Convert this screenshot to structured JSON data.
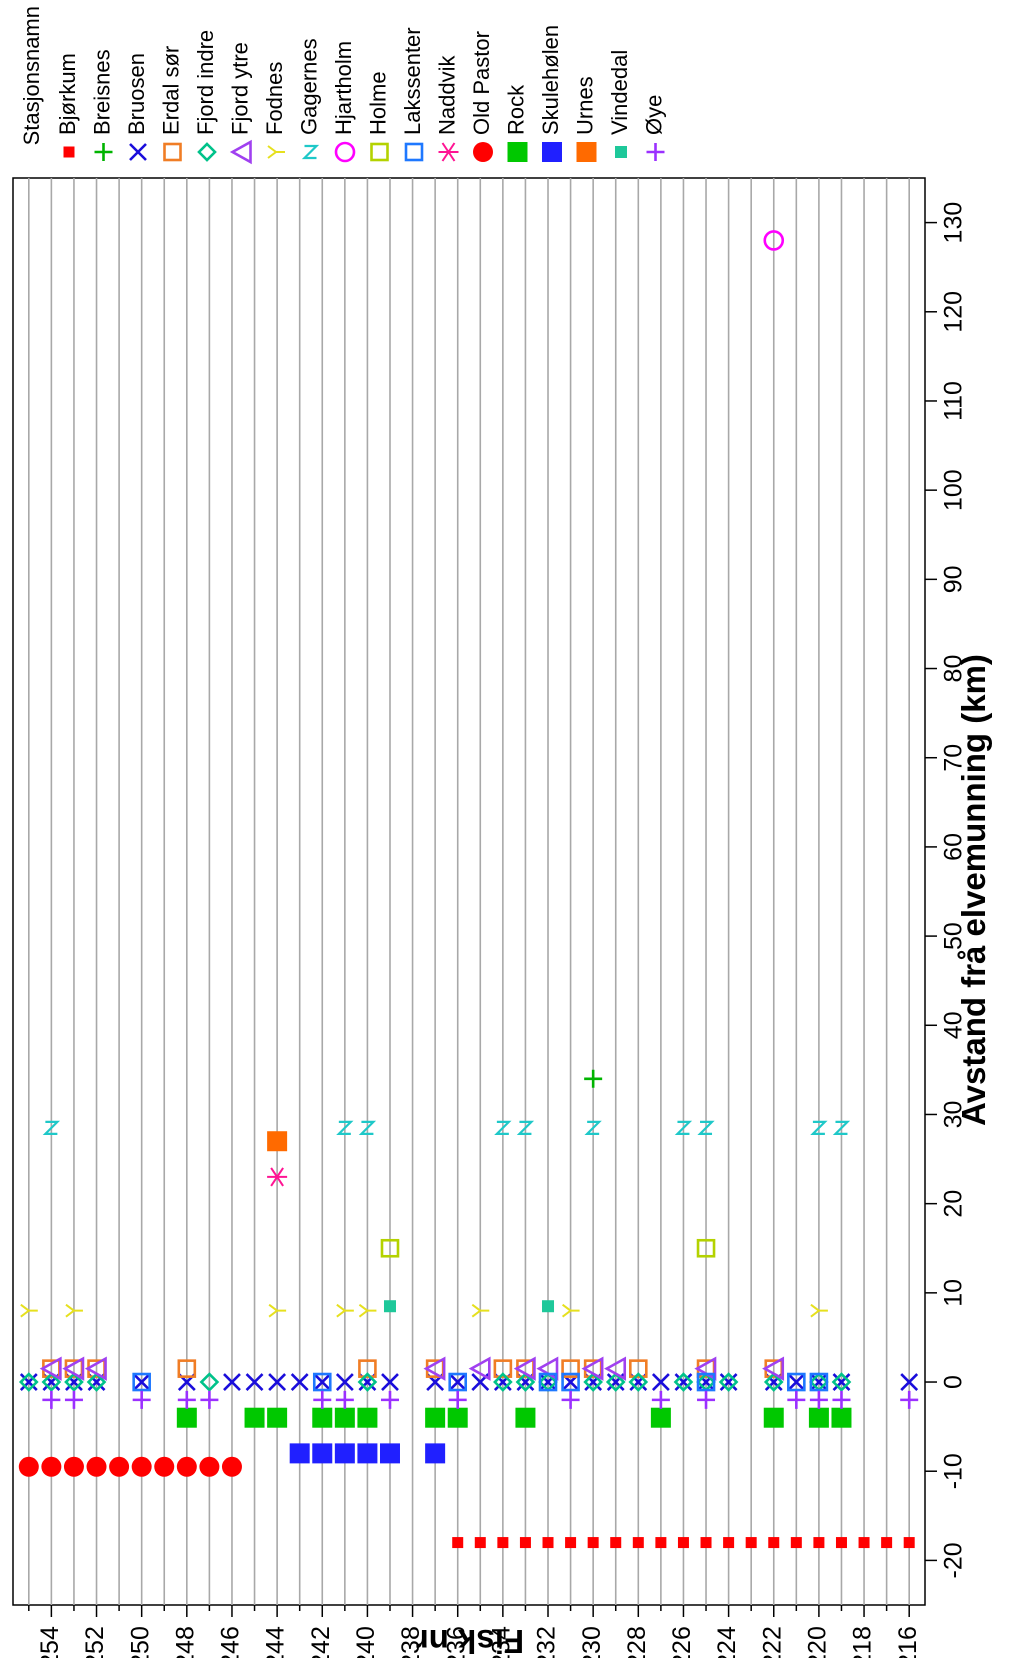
{
  "chart_data": {
    "type": "scatter",
    "orientation": "rotated-90-ccw",
    "xlabel": "Avstand frå elvemunning (km)",
    "ylabel": "Fisk nr",
    "xlim": [
      -25,
      135
    ],
    "ylim": [
      215.3,
      255.7
    ],
    "xticks": [
      -20,
      -10,
      0,
      10,
      20,
      30,
      40,
      50,
      60,
      70,
      80,
      90,
      100,
      110,
      120,
      130
    ],
    "yticks": [
      216,
      218,
      220,
      222,
      224,
      226,
      228,
      230,
      232,
      234,
      236,
      238,
      240,
      242,
      244,
      246,
      248,
      250,
      252,
      254
    ],
    "grid": "horizontal lines at every fish number",
    "legend_title": "Stasjonsnamn",
    "legend_position": "top, rotated",
    "series": [
      {
        "name": "Bjørkum",
        "marker": "small-square",
        "color": "#ff0000",
        "points": [
          [
            -18,
            216
          ],
          [
            -18,
            217
          ],
          [
            -18,
            218
          ],
          [
            -18,
            219
          ],
          [
            -18,
            220
          ],
          [
            -18,
            221
          ],
          [
            -18,
            222
          ],
          [
            -18,
            223
          ],
          [
            -18,
            224
          ],
          [
            -18,
            225
          ],
          [
            -18,
            226
          ],
          [
            -18,
            227
          ],
          [
            -18,
            228
          ],
          [
            -18,
            229
          ],
          [
            -18,
            230
          ],
          [
            -18,
            231
          ],
          [
            -18,
            232
          ],
          [
            -18,
            233
          ],
          [
            -18,
            234
          ],
          [
            -18,
            235
          ],
          [
            -18,
            236
          ]
        ]
      },
      {
        "name": "Breisnes",
        "marker": "plus",
        "color": "#00b400",
        "points": [
          [
            34,
            230
          ]
        ]
      },
      {
        "name": "Bruosen",
        "marker": "x",
        "color": "#1a0ddb",
        "points": [
          [
            0,
            255
          ],
          [
            0,
            254
          ],
          [
            0,
            253
          ],
          [
            0,
            252
          ],
          [
            0,
            250
          ],
          [
            0,
            248
          ],
          [
            0,
            246
          ],
          [
            0,
            245
          ],
          [
            0,
            244
          ],
          [
            0,
            243
          ],
          [
            0,
            242
          ],
          [
            0,
            241
          ],
          [
            0,
            240
          ],
          [
            0,
            239
          ],
          [
            0,
            237
          ],
          [
            0,
            236
          ],
          [
            0,
            235
          ],
          [
            0,
            234
          ],
          [
            0,
            233
          ],
          [
            0,
            232
          ],
          [
            0,
            231
          ],
          [
            0,
            230
          ],
          [
            0,
            229
          ],
          [
            0,
            228
          ],
          [
            0,
            227
          ],
          [
            0,
            226
          ],
          [
            0,
            225
          ],
          [
            0,
            224
          ],
          [
            0,
            222
          ],
          [
            0,
            221
          ],
          [
            0,
            220
          ],
          [
            0,
            219
          ],
          [
            0,
            216
          ]
        ]
      },
      {
        "name": "Erdal sør",
        "marker": "open-square",
        "color": "#f07d25",
        "points": [
          [
            1.5,
            254
          ],
          [
            1.5,
            253
          ],
          [
            1.5,
            252
          ],
          [
            1.5,
            248
          ],
          [
            1.5,
            240
          ],
          [
            1.5,
            237
          ],
          [
            1.5,
            234
          ],
          [
            1.5,
            233
          ],
          [
            1.5,
            231
          ],
          [
            1.5,
            230
          ],
          [
            1.5,
            228
          ],
          [
            1.5,
            225
          ],
          [
            1.5,
            222
          ]
        ]
      },
      {
        "name": "Fjord indre",
        "marker": "open-diamond",
        "color": "#00c28a",
        "points": [
          [
            0,
            255
          ],
          [
            0,
            254
          ],
          [
            0,
            253
          ],
          [
            0,
            252
          ],
          [
            0,
            247
          ],
          [
            0,
            240
          ],
          [
            0,
            234
          ],
          [
            0,
            233
          ],
          [
            0,
            232
          ],
          [
            0,
            230
          ],
          [
            0,
            229
          ],
          [
            0,
            228
          ],
          [
            0,
            226
          ],
          [
            0,
            225
          ],
          [
            0,
            224
          ],
          [
            0,
            222
          ],
          [
            0,
            220
          ],
          [
            0,
            219
          ]
        ]
      },
      {
        "name": "Fjord ytre",
        "marker": "open-triangle",
        "color": "#a040f0",
        "points": [
          [
            1.5,
            254
          ],
          [
            1.5,
            253
          ],
          [
            1.5,
            252
          ],
          [
            1.5,
            237
          ],
          [
            1.5,
            235
          ],
          [
            1.5,
            233
          ],
          [
            1.5,
            232
          ],
          [
            1.5,
            230
          ],
          [
            1.5,
            229
          ],
          [
            1.5,
            225
          ],
          [
            1.5,
            222
          ]
        ]
      },
      {
        "name": "Fodnes",
        "marker": "y",
        "color": "#e6e01e",
        "points": [
          [
            8,
            255
          ],
          [
            8,
            253
          ],
          [
            8,
            244
          ],
          [
            8,
            241
          ],
          [
            8,
            240
          ],
          [
            8,
            235
          ],
          [
            8,
            231
          ],
          [
            8,
            220
          ]
        ]
      },
      {
        "name": "Gagernes",
        "marker": "z",
        "color": "#1ec8c8",
        "points": [
          [
            28.5,
            254
          ],
          [
            28.5,
            241
          ],
          [
            28.5,
            240
          ],
          [
            28.5,
            234
          ],
          [
            28.5,
            233
          ],
          [
            28.5,
            230
          ],
          [
            28.5,
            226
          ],
          [
            28.5,
            225
          ],
          [
            28.5,
            220
          ],
          [
            28.5,
            219
          ]
        ]
      },
      {
        "name": "Hjartholm",
        "marker": "open-circle",
        "color": "#ff00ff",
        "points": [
          [
            128,
            222
          ]
        ]
      },
      {
        "name": "Holme",
        "marker": "open-square",
        "color": "#b4d200",
        "points": [
          [
            15,
            239
          ],
          [
            15,
            225
          ]
        ]
      },
      {
        "name": "Lakssenter",
        "marker": "open-square",
        "color": "#1e78ff",
        "points": [
          [
            0,
            250
          ],
          [
            0,
            242
          ],
          [
            0,
            236
          ],
          [
            0,
            232
          ],
          [
            0,
            231
          ],
          [
            0,
            225
          ],
          [
            0,
            221
          ],
          [
            0,
            220
          ]
        ]
      },
      {
        "name": "Naddvik",
        "marker": "asterisk",
        "color": "#ff1493",
        "points": [
          [
            23,
            244
          ]
        ]
      },
      {
        "name": "Old Pastor",
        "marker": "filled-circle",
        "color": "#ff0000",
        "points": [
          [
            -9.5,
            255
          ],
          [
            -9.5,
            254
          ],
          [
            -9.5,
            253
          ],
          [
            -9.5,
            252
          ],
          [
            -9.5,
            251
          ],
          [
            -9.5,
            250
          ],
          [
            -9.5,
            249
          ],
          [
            -9.5,
            248
          ],
          [
            -9.5,
            247
          ],
          [
            -9.5,
            246
          ]
        ]
      },
      {
        "name": "Rock",
        "marker": "filled-square",
        "color": "#00c800",
        "points": [
          [
            -4,
            248
          ],
          [
            -4,
            245
          ],
          [
            -4,
            244
          ],
          [
            -4,
            242
          ],
          [
            -4,
            241
          ],
          [
            -4,
            240
          ],
          [
            -4,
            237
          ],
          [
            -4,
            236
          ],
          [
            -4,
            233
          ],
          [
            -4,
            227
          ],
          [
            -4,
            222
          ],
          [
            -4,
            220
          ],
          [
            -4,
            219
          ]
        ]
      },
      {
        "name": "Skulehølen",
        "marker": "filled-square",
        "color": "#2020ff",
        "points": [
          [
            -8,
            243
          ],
          [
            -8,
            242
          ],
          [
            -8,
            241
          ],
          [
            -8,
            240
          ],
          [
            -8,
            239
          ],
          [
            -8,
            237
          ]
        ]
      },
      {
        "name": "Urnes",
        "marker": "filled-square",
        "color": "#ff6a00",
        "points": [
          [
            27,
            244
          ]
        ]
      },
      {
        "name": "Vindedal",
        "marker": "small-filled-square",
        "color": "#1ec89a",
        "points": [
          [
            8.5,
            239
          ],
          [
            8.5,
            232
          ]
        ]
      },
      {
        "name": "Øye",
        "marker": "plus",
        "color": "#9b30ff",
        "points": [
          [
            -2,
            254
          ],
          [
            -2,
            253
          ],
          [
            -2,
            250
          ],
          [
            -2,
            248
          ],
          [
            -2,
            247
          ],
          [
            -2,
            242
          ],
          [
            -2,
            241
          ],
          [
            -2,
            239
          ],
          [
            -2,
            236
          ],
          [
            -2,
            231
          ],
          [
            -2,
            227
          ],
          [
            -2,
            225
          ],
          [
            -2,
            221
          ],
          [
            -2,
            220
          ],
          [
            -2,
            219
          ],
          [
            -2,
            216
          ]
        ]
      }
    ]
  }
}
